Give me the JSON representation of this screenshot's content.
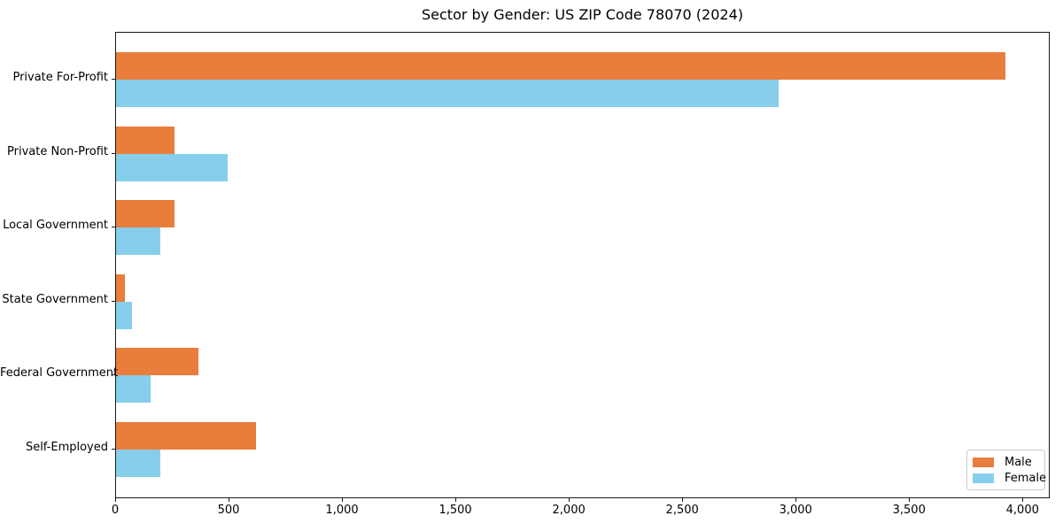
{
  "title": "Sector by Gender: US ZIP Code 78070 (2024)",
  "chart_data": {
    "type": "bar",
    "orientation": "horizontal",
    "title": "Sector by Gender: US ZIP Code 78070 (2024)",
    "categories": [
      "Private For-Profit",
      "Private Non-Profit",
      "Local Government",
      "State Government",
      "Federal Government",
      "Self-Employed"
    ],
    "series": [
      {
        "name": "Male",
        "color": "#e87d3c",
        "values": [
          3920,
          257,
          257,
          39,
          363,
          616
        ]
      },
      {
        "name": "Female",
        "color": "#87ceeb",
        "values": [
          2920,
          491,
          195,
          70,
          152,
          195
        ]
      }
    ],
    "xlabel": "",
    "ylabel": "",
    "xlim": [
      0,
      4120
    ],
    "xticks": [
      0,
      500,
      1000,
      1500,
      2000,
      2500,
      3000,
      3500,
      4000
    ],
    "xtick_labels": [
      "0",
      "500",
      "1,000",
      "1,500",
      "2,000",
      "2,500",
      "3,000",
      "3,500",
      "4,000"
    ],
    "grid": false,
    "legend_position": "lower right"
  }
}
